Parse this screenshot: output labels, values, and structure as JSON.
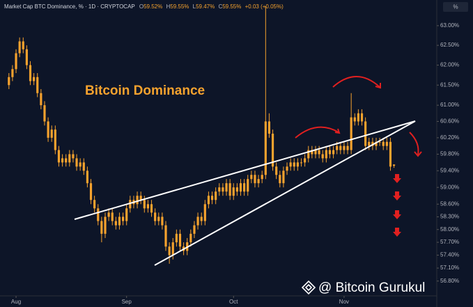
{
  "chart_data": {
    "type": "candlestick",
    "title": "Market Cap BTC Dominance, % · 1D · CRYPTOCAP",
    "ohlc_legend": [
      {
        "label": "O",
        "text": "59.52%"
      },
      {
        "label": "H",
        "text": "59.55%"
      },
      {
        "label": "L",
        "text": "59.47%"
      },
      {
        "label": "C",
        "text": "59.55%"
      }
    ],
    "change_text": "+0.03 (+0.05%)",
    "unit_button": "%",
    "annotation": "Bitcoin Dominance",
    "watermark": "@ Bitcoin Gurukul",
    "color": "#f5a22e",
    "log_scale": true,
    "x": [
      -2,
      -1,
      0,
      1,
      2,
      3,
      4,
      5,
      6,
      7,
      8,
      9,
      10,
      11,
      12,
      13,
      14,
      15,
      16,
      17,
      18,
      19,
      20,
      21,
      22,
      23,
      24,
      25,
      26,
      27,
      28,
      29,
      30,
      31,
      32,
      33,
      34,
      35,
      36,
      37,
      38,
      39,
      40,
      41,
      42,
      43,
      44,
      45,
      46,
      47,
      48,
      49,
      50,
      51,
      52,
      53,
      54,
      55,
      56,
      57,
      58,
      59,
      60,
      61,
      62,
      63,
      64,
      65,
      66,
      67,
      68,
      69,
      70,
      71,
      72,
      73,
      74,
      75,
      76,
      77,
      78,
      79,
      80,
      81,
      82,
      83,
      84,
      85,
      86,
      87,
      88,
      89,
      90,
      91,
      92,
      93,
      94,
      95,
      96,
      97,
      98,
      99,
      100,
      101,
      102,
      103,
      104,
      105,
      106
    ],
    "open": [
      61.5,
      61.7,
      61.9,
      62.3,
      62.6,
      62.4,
      62.0,
      61.6,
      61.7,
      61.3,
      61.0,
      60.6,
      60.2,
      60.4,
      59.9,
      59.6,
      59.7,
      59.6,
      59.8,
      59.7,
      59.5,
      59.6,
      59.4,
      59.1,
      58.7,
      58.5,
      58.2,
      57.9,
      58.3,
      58.4,
      58.2,
      58.1,
      58.3,
      58.2,
      58.5,
      58.7,
      58.6,
      58.8,
      58.7,
      58.5,
      58.6,
      58.4,
      58.2,
      58.3,
      58.1,
      57.6,
      57.4,
      57.7,
      57.9,
      57.6,
      57.5,
      57.7,
      57.9,
      58.1,
      58.3,
      58.2,
      58.6,
      58.8,
      58.7,
      58.9,
      59.0,
      58.9,
      59.1,
      58.8,
      59.0,
      58.9,
      59.1,
      58.9,
      59.2,
      59.3,
      59.1,
      59.2,
      59.3,
      60.6,
      60.3,
      59.5,
      59.3,
      59.1,
      59.4,
      59.5,
      59.6,
      59.5,
      59.6,
      59.6,
      59.7,
      59.9,
      59.8,
      59.9,
      59.8,
      59.7,
      59.9,
      59.8,
      59.9,
      60.0,
      59.9,
      60.0,
      59.9,
      60.7,
      60.6,
      60.8,
      60.6,
      60.0,
      60.1,
      60.0,
      60.1,
      60.1,
      60.0,
      60.1,
      59.52
    ],
    "high": [
      61.8,
      62.0,
      62.4,
      62.7,
      62.7,
      62.5,
      62.1,
      61.8,
      61.8,
      61.4,
      61.1,
      60.7,
      60.5,
      60.5,
      60.0,
      59.8,
      59.8,
      59.9,
      59.9,
      59.8,
      59.7,
      59.7,
      59.5,
      59.2,
      58.8,
      58.6,
      58.3,
      58.4,
      58.5,
      58.5,
      58.3,
      58.4,
      58.4,
      58.6,
      58.8,
      58.8,
      58.9,
      58.9,
      58.8,
      58.7,
      58.7,
      58.5,
      58.4,
      58.4,
      58.2,
      57.7,
      57.8,
      58.0,
      58.0,
      57.7,
      57.8,
      58.0,
      58.2,
      58.4,
      58.4,
      58.7,
      58.9,
      58.9,
      59.0,
      59.1,
      59.1,
      59.2,
      59.2,
      59.1,
      59.1,
      59.2,
      59.2,
      59.3,
      59.4,
      59.4,
      59.3,
      59.4,
      63.5,
      60.8,
      60.4,
      59.6,
      59.4,
      59.5,
      59.6,
      59.7,
      59.7,
      59.7,
      59.7,
      59.8,
      60.0,
      60.0,
      60.0,
      60.0,
      59.9,
      60.0,
      60.0,
      60.0,
      60.1,
      60.1,
      60.1,
      60.1,
      61.3,
      60.8,
      60.9,
      60.9,
      60.7,
      60.2,
      60.2,
      60.2,
      60.2,
      60.2,
      60.2,
      60.2,
      59.55
    ],
    "low": [
      61.4,
      61.6,
      61.8,
      62.2,
      62.3,
      61.9,
      61.5,
      61.5,
      61.2,
      60.9,
      60.5,
      60.1,
      60.1,
      59.8,
      59.5,
      59.5,
      59.5,
      59.5,
      59.6,
      59.4,
      59.4,
      59.3,
      59.0,
      58.6,
      58.4,
      58.1,
      57.7,
      57.8,
      58.2,
      58.1,
      58.0,
      58.0,
      58.1,
      58.1,
      58.4,
      58.5,
      58.5,
      58.6,
      58.4,
      58.4,
      58.3,
      58.1,
      58.1,
      58.0,
      57.5,
      57.2,
      57.3,
      57.6,
      57.5,
      57.4,
      57.4,
      57.6,
      57.8,
      58.0,
      58.1,
      58.1,
      58.5,
      58.6,
      58.6,
      58.8,
      58.8,
      58.8,
      58.7,
      58.7,
      58.8,
      58.8,
      58.8,
      58.8,
      59.1,
      59.0,
      59.0,
      59.1,
      59.2,
      60.2,
      59.4,
      59.2,
      59.0,
      59.0,
      59.3,
      59.4,
      59.4,
      59.4,
      59.5,
      59.5,
      59.6,
      59.7,
      59.7,
      59.7,
      59.6,
      59.6,
      59.7,
      59.7,
      59.8,
      59.8,
      59.8,
      59.8,
      59.8,
      60.5,
      60.5,
      60.5,
      59.9,
      59.9,
      59.9,
      59.9,
      60.0,
      59.9,
      59.9,
      59.4,
      59.47
    ],
    "close": [
      61.7,
      61.9,
      62.3,
      62.6,
      62.4,
      62.0,
      61.6,
      61.7,
      61.3,
      61.0,
      60.6,
      60.2,
      60.4,
      59.9,
      59.6,
      59.7,
      59.6,
      59.8,
      59.7,
      59.5,
      59.6,
      59.4,
      59.1,
      58.7,
      58.5,
      58.2,
      57.9,
      58.3,
      58.4,
      58.2,
      58.1,
      58.3,
      58.2,
      58.5,
      58.7,
      58.6,
      58.8,
      58.7,
      58.5,
      58.6,
      58.4,
      58.2,
      58.3,
      58.1,
      57.6,
      57.4,
      57.7,
      57.9,
      57.6,
      57.5,
      57.7,
      57.9,
      58.1,
      58.3,
      58.2,
      58.6,
      58.8,
      58.7,
      58.9,
      59.0,
      58.9,
      59.1,
      58.8,
      59.0,
      58.9,
      59.1,
      58.9,
      59.2,
      59.3,
      59.1,
      59.2,
      59.3,
      60.6,
      60.3,
      59.5,
      59.3,
      59.1,
      59.4,
      59.5,
      59.6,
      59.5,
      59.6,
      59.6,
      59.7,
      59.9,
      59.8,
      59.9,
      59.8,
      59.7,
      59.9,
      59.8,
      59.9,
      60.0,
      59.9,
      60.0,
      59.9,
      60.7,
      60.6,
      60.8,
      60.6,
      60.0,
      60.1,
      60.0,
      60.1,
      60.1,
      60.0,
      60.1,
      59.5,
      59.55
    ],
    "xlim": [
      -4.5,
      118
    ],
    "xticks": [
      {
        "value": 0,
        "label": "Aug"
      },
      {
        "value": 31,
        "label": "Sep"
      },
      {
        "value": 61,
        "label": "Oct"
      },
      {
        "value": 92,
        "label": "Nov"
      }
    ],
    "ylim": [
      56.46,
      63.66
    ],
    "yticks": [
      {
        "value": 63,
        "label": "63.00%"
      },
      {
        "value": 62.5,
        "label": "62.50%"
      },
      {
        "value": 62,
        "label": "62.00%"
      },
      {
        "value": 61.5,
        "label": "61.50%"
      },
      {
        "value": 61,
        "label": "61.00%"
      },
      {
        "value": 60.6,
        "label": "60.60%"
      },
      {
        "value": 60.2,
        "label": "60.20%"
      },
      {
        "value": 59.8,
        "label": "59.80%"
      },
      {
        "value": 59.4,
        "label": "59.40%"
      },
      {
        "value": 59,
        "label": "59.00%"
      },
      {
        "value": 58.6,
        "label": "58.60%"
      },
      {
        "value": 58.3,
        "label": "58.30%"
      },
      {
        "value": 58,
        "label": "58.00%"
      },
      {
        "value": 57.7,
        "label": "57.70%"
      },
      {
        "value": 57.4,
        "label": "57.40%"
      },
      {
        "value": 57.1,
        "label": "57.10%"
      },
      {
        "value": 56.8,
        "label": "56.80%"
      }
    ]
  }
}
